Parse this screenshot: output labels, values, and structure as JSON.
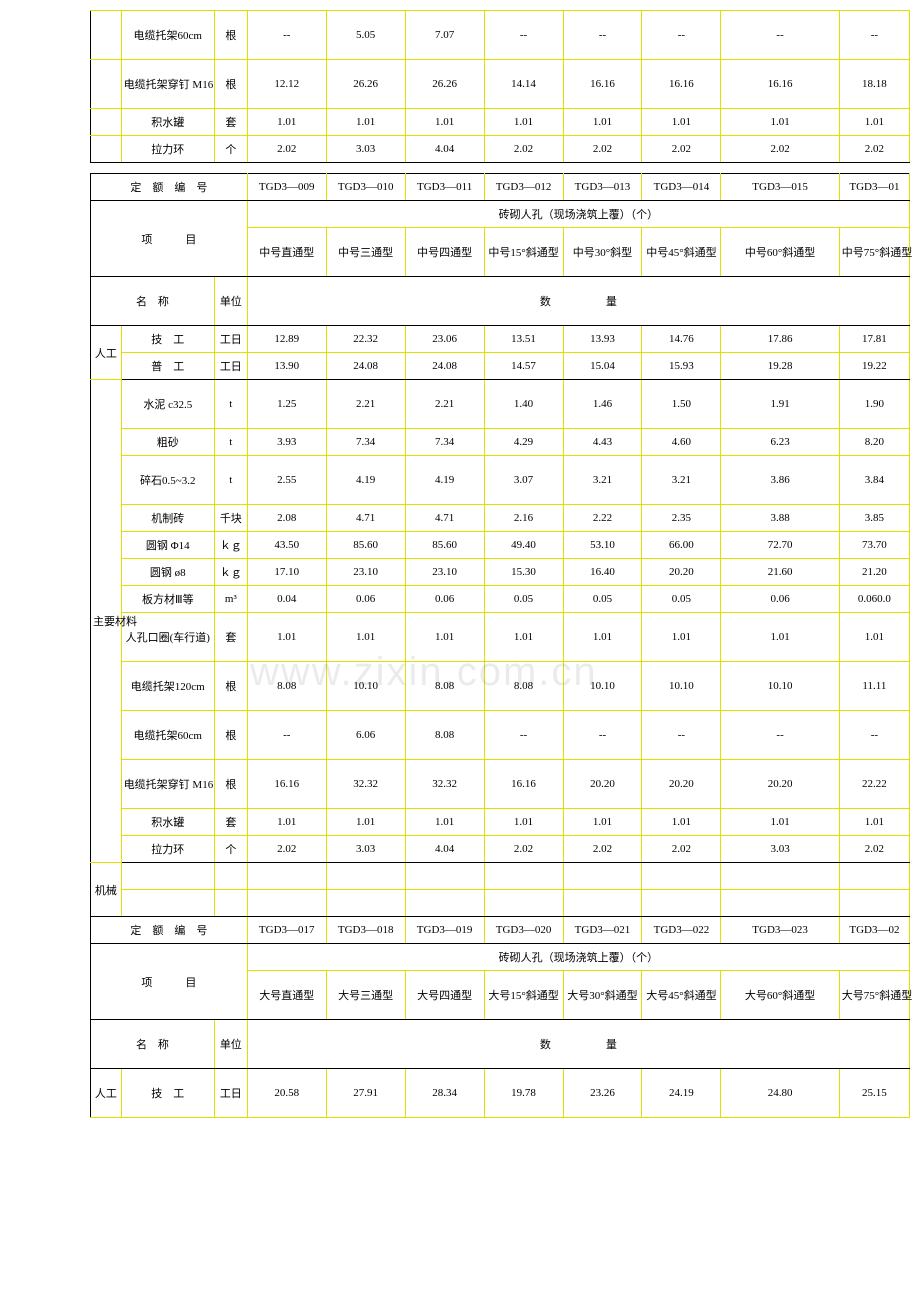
{
  "watermark": "www.zixin.com.cn",
  "table1": {
    "rows": [
      {
        "name": "电缆托架60cm",
        "u": "根",
        "v": [
          "--",
          "5.05",
          "7.07",
          "--",
          "--",
          "--",
          "--",
          "--"
        ]
      },
      {
        "name": "电缆托架穿钉 M16",
        "u": "根",
        "v": [
          "12.12",
          "26.26",
          "26.26",
          "14.14",
          "16.16",
          "16.16",
          "16.16",
          "18.18"
        ]
      },
      {
        "name": "积水罐",
        "u": "套",
        "v": [
          "1.01",
          "1.01",
          "1.01",
          "1.01",
          "1.01",
          "1.01",
          "1.01",
          "1.01"
        ]
      },
      {
        "name": "拉力环",
        "u": "个",
        "v": [
          "2.02",
          "3.03",
          "4.04",
          "2.02",
          "2.02",
          "2.02",
          "2.02",
          "2.02"
        ]
      }
    ]
  },
  "table2": {
    "header_title": "定　额　编　号",
    "codes": [
      "TGD3—009",
      "TGD3—010",
      "TGD3—011",
      "TGD3—012",
      "TGD3—013",
      "TGD3—014",
      "TGD3—015",
      "TGD3—01"
    ],
    "item_label": "项　　　目",
    "group_title": "砖砌人孔（现场浇筑上覆）（个）",
    "items": [
      "中号直通型",
      "中号三通型",
      "中号四通型",
      "中号15°斜通型",
      "中号30°斜型",
      "中号45°斜通型",
      "中号60°斜通型",
      "中号75°斜通型"
    ],
    "name_label": "名　称",
    "unit_label": "单位",
    "qty_label": "数　　　　　量",
    "sections": [
      {
        "label": "人工",
        "rows": [
          {
            "name": "技　工",
            "u": "工日",
            "v": [
              "12.89",
              "22.32",
              "23.06",
              "13.51",
              "13.93",
              "14.76",
              "17.86",
              "17.81"
            ]
          },
          {
            "name": "普　工",
            "u": "工日",
            "v": [
              "13.90",
              "24.08",
              "24.08",
              "14.57",
              "15.04",
              "15.93",
              "19.28",
              "19.22"
            ]
          }
        ]
      },
      {
        "label": "主要材料",
        "rows": [
          {
            "name": "水泥 c32.5",
            "u": "t",
            "v": [
              "1.25",
              "2.21",
              "2.21",
              "1.40",
              "1.46",
              "1.50",
              "1.91",
              "1.90"
            ]
          },
          {
            "name": "粗砂",
            "u": "t",
            "v": [
              "3.93",
              "7.34",
              "7.34",
              "4.29",
              "4.43",
              "4.60",
              "6.23",
              "8.20"
            ]
          },
          {
            "name": "碎石0.5~3.2",
            "u": "t",
            "v": [
              "2.55",
              "4.19",
              "4.19",
              "3.07",
              "3.21",
              "3.21",
              "3.86",
              "3.84"
            ]
          },
          {
            "name": "机制砖",
            "u": "千块",
            "v": [
              "2.08",
              "4.71",
              "4.71",
              "2.16",
              "2.22",
              "2.35",
              "3.88",
              "3.85"
            ]
          },
          {
            "name": "圆钢 Φ14",
            "u": "ｋｇ",
            "v": [
              "43.50",
              "85.60",
              "85.60",
              "49.40",
              "53.10",
              "66.00",
              "72.70",
              "73.70"
            ]
          },
          {
            "name": "圆钢 ø8",
            "u": "ｋｇ",
            "v": [
              "17.10",
              "23.10",
              "23.10",
              "15.30",
              "16.40",
              "20.20",
              "21.60",
              "21.20"
            ]
          },
          {
            "name": "板方材Ⅲ等",
            "u": "m³",
            "v": [
              "0.04",
              "0.06",
              "0.06",
              "0.05",
              "0.05",
              "0.05",
              "0.06",
              "0.060.0"
            ]
          },
          {
            "name": "人孔口圈(车行道)",
            "u": "套",
            "v": [
              "1.01",
              "1.01",
              "1.01",
              "1.01",
              "1.01",
              "1.01",
              "1.01",
              "1.01"
            ]
          },
          {
            "name": "电缆托架120cm",
            "u": "根",
            "v": [
              "8.08",
              "10.10",
              "8.08",
              "8.08",
              "10.10",
              "10.10",
              "10.10",
              "11.11"
            ]
          },
          {
            "name": "电缆托架60cm",
            "u": "根",
            "v": [
              "--",
              "6.06",
              "8.08",
              "--",
              "--",
              "--",
              "--",
              "--"
            ]
          },
          {
            "name": "电缆托架穿钉 M16",
            "u": "根",
            "v": [
              "16.16",
              "32.32",
              "32.32",
              "16.16",
              "20.20",
              "20.20",
              "20.20",
              "22.22"
            ]
          },
          {
            "name": "积水罐",
            "u": "套",
            "v": [
              "1.01",
              "1.01",
              "1.01",
              "1.01",
              "1.01",
              "1.01",
              "1.01",
              "1.01"
            ]
          },
          {
            "name": "拉力环",
            "u": "个",
            "v": [
              "2.02",
              "3.03",
              "4.04",
              "2.02",
              "2.02",
              "2.02",
              "3.03",
              "2.02"
            ]
          }
        ]
      },
      {
        "label": "机械",
        "rows": [
          {
            "name": "",
            "u": "",
            "v": [
              "",
              "",
              "",
              "",
              "",
              "",
              "",
              ""
            ]
          },
          {
            "name": "",
            "u": "",
            "v": [
              "",
              "",
              "",
              "",
              "",
              "",
              "",
              ""
            ]
          }
        ]
      }
    ]
  },
  "table3": {
    "header_title": "定　额　编　号",
    "codes": [
      "TGD3—017",
      "TGD3—018",
      "TGD3—019",
      "TGD3—020",
      "TGD3—021",
      "TGD3—022",
      "TGD3—023",
      "TGD3—02"
    ],
    "item_label": "项　　　目",
    "group_title": "砖砌人孔（现场浇筑上覆）（个）",
    "items": [
      "大号直通型",
      "大号三通型",
      "大号四通型",
      "大号15°斜通型",
      "大号30°斜通型",
      "大号45°斜通型",
      "大号60°斜通型",
      "大号75°斜通型"
    ],
    "name_label": "名　称",
    "unit_label": "单位",
    "qty_label": "数　　　　　量",
    "section_label": "人工",
    "row": {
      "name": "技　工",
      "u": "工日",
      "v": [
        "20.58",
        "27.91",
        "28.34",
        "19.78",
        "23.26",
        "24.19",
        "24.80",
        "25.15"
      ]
    }
  }
}
